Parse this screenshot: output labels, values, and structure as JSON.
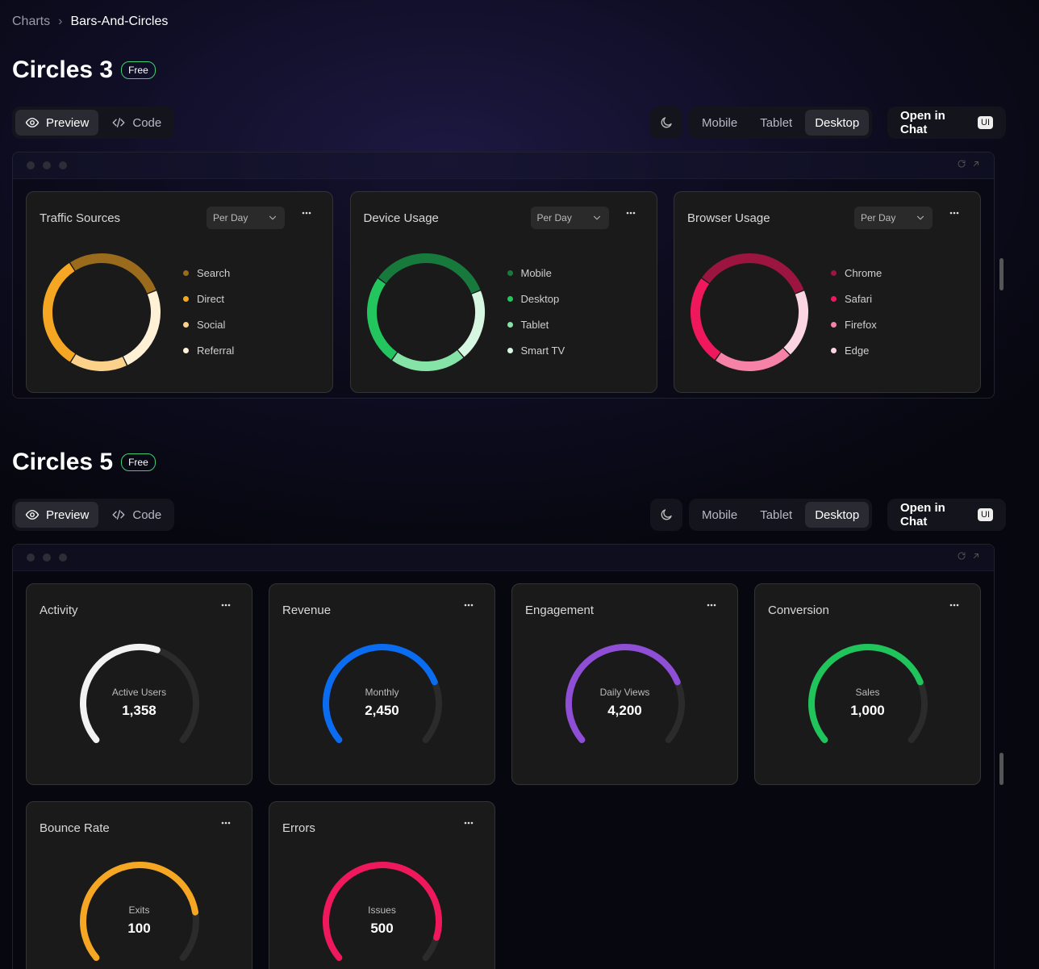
{
  "breadcrumb": [
    "Charts",
    "Bars-And-Circles"
  ],
  "sections": [
    {
      "title": "Circles 3",
      "badge": "Free",
      "tabs": [
        "Preview",
        "Code"
      ],
      "devices": [
        "Mobile",
        "Tablet",
        "Desktop"
      ],
      "open_button": "Open in Chat",
      "open_badge": "UI",
      "cards": [
        {
          "title": "Traffic Sources",
          "filter": "Per Day",
          "segments": [
            {
              "name": "Search",
              "color": "#9a6b1c",
              "value": 28
            },
            {
              "name": "Direct",
              "color": "#f5a623",
              "value": 32
            },
            {
              "name": "Social",
              "color": "#fcd28a",
              "value": 16
            },
            {
              "name": "Referral",
              "color": "#fff1d6",
              "value": 24
            }
          ]
        },
        {
          "title": "Device Usage",
          "filter": "Per Day",
          "segments": [
            {
              "name": "Mobile",
              "color": "#177a3c",
              "value": 34
            },
            {
              "name": "Desktop",
              "color": "#22c55e",
              "value": 25
            },
            {
              "name": "Tablet",
              "color": "#86e3a8",
              "value": 21
            },
            {
              "name": "Smart TV",
              "color": "#d7f7e2",
              "value": 20
            }
          ]
        },
        {
          "title": "Browser Usage",
          "filter": "Per Day",
          "segments": [
            {
              "name": "Chrome",
              "color": "#9b1540",
              "value": 34
            },
            {
              "name": "Safari",
              "color": "#f0185d",
              "value": 25
            },
            {
              "name": "Firefox",
              "color": "#f682a8",
              "value": 22
            },
            {
              "name": "Edge",
              "color": "#fcd5e2",
              "value": 19
            }
          ]
        }
      ]
    },
    {
      "title": "Circles 5",
      "badge": "Free",
      "tabs": [
        "Preview",
        "Code"
      ],
      "devices": [
        "Mobile",
        "Tablet",
        "Desktop"
      ],
      "open_button": "Open in Chat",
      "open_badge": "UI",
      "gauges": [
        {
          "title": "Activity",
          "label": "Active Users",
          "value": "1,358",
          "progress": 57,
          "color": "#f2f2f2"
        },
        {
          "title": "Revenue",
          "label": "Monthly",
          "value": "2,450",
          "progress": 76,
          "color": "#0a6cf0"
        },
        {
          "title": "Engagement",
          "label": "Daily Views",
          "value": "4,200",
          "progress": 76,
          "color": "#8e4fd6"
        },
        {
          "title": "Conversion",
          "label": "Sales",
          "value": "1,000",
          "progress": 76,
          "color": "#1fc45a"
        },
        {
          "title": "Bounce Rate",
          "label": "Exits",
          "value": "100",
          "progress": 81,
          "color": "#f5a623"
        },
        {
          "title": "Errors",
          "label": "Issues",
          "value": "500",
          "progress": 91,
          "color": "#f0185d"
        }
      ]
    }
  ]
}
